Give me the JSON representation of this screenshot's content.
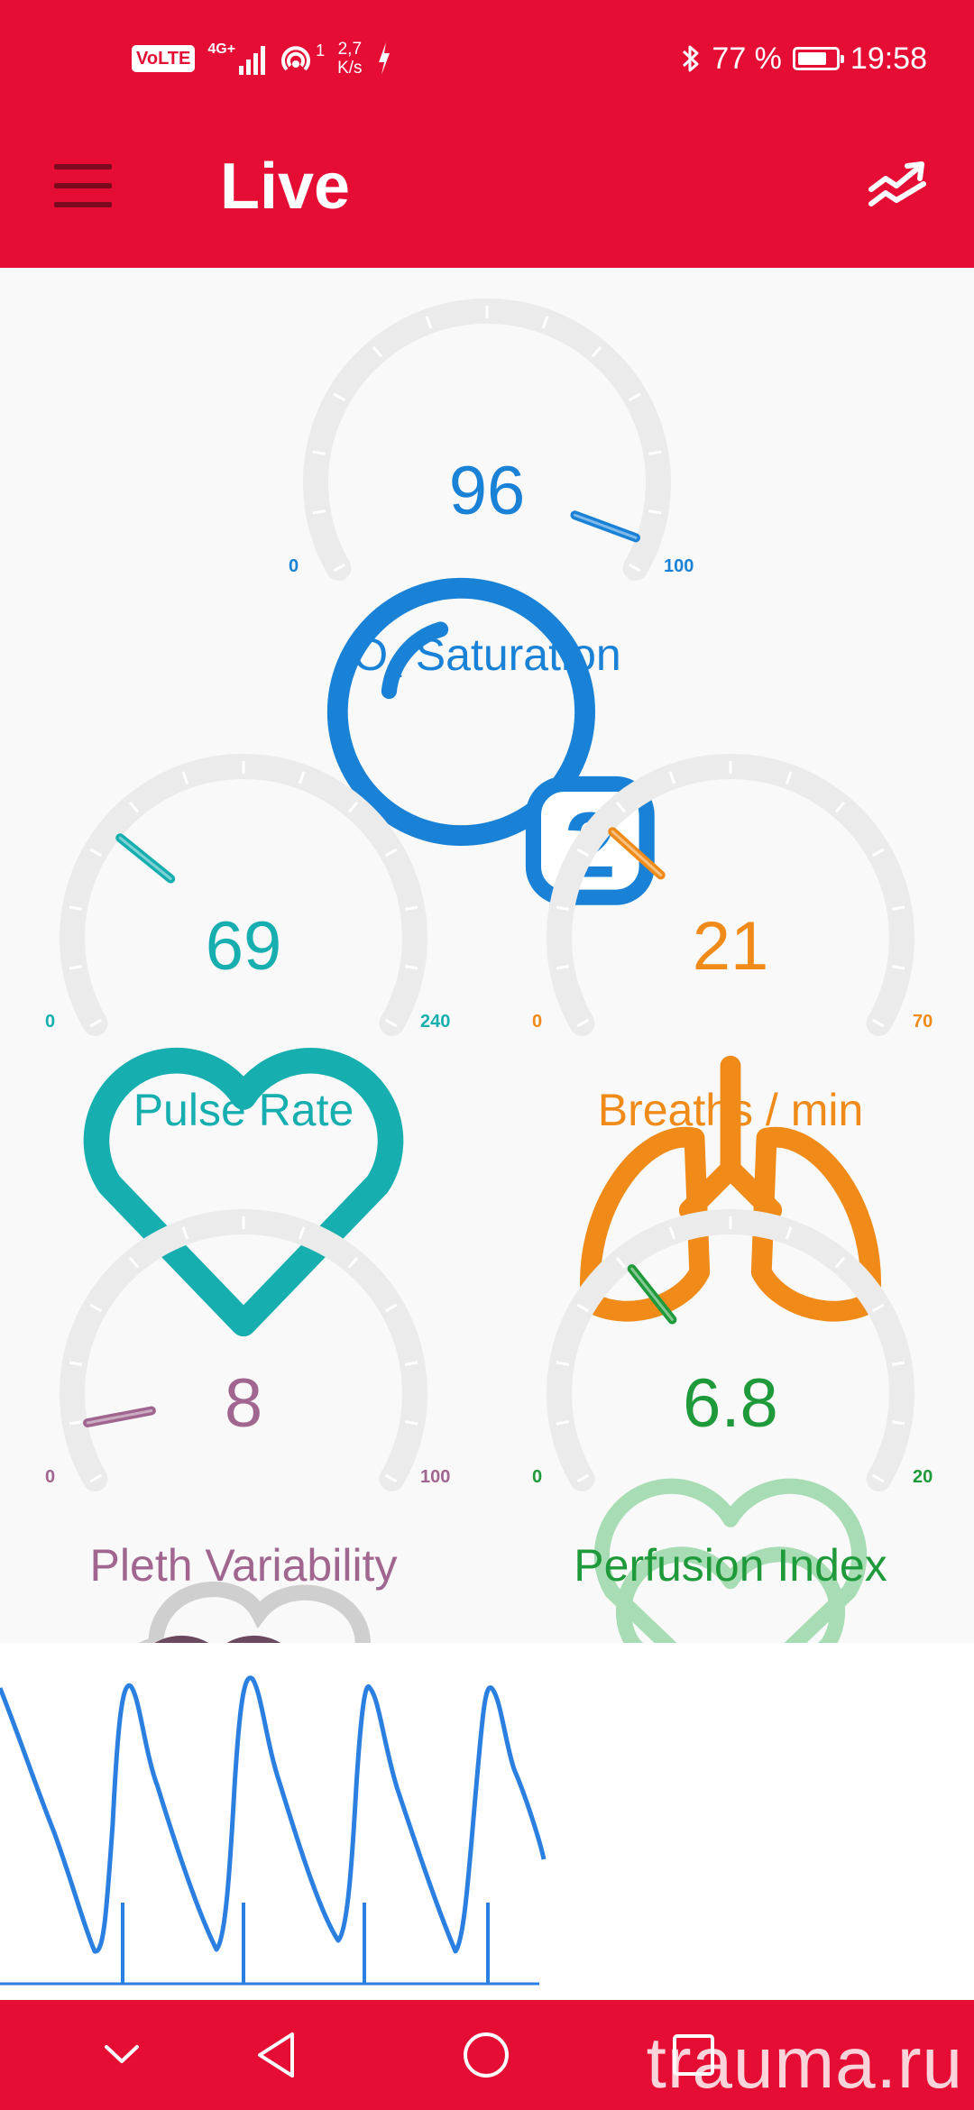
{
  "status_bar": {
    "volte": "VoLTE",
    "network": "4G+",
    "hotspot_count": "1",
    "net_speed_value": "2,7",
    "net_speed_unit": "K/s",
    "bluetooth_icon": "bluetooth-icon",
    "battery_percent": "77 %",
    "battery_level": 0.77,
    "time": "19:58"
  },
  "app_bar": {
    "title": "Live",
    "menu_icon": "hamburger-menu-icon",
    "trends_icon": "trending-chart-icon"
  },
  "gauges": [
    {
      "id": "o2",
      "value": "96",
      "value_num": 96,
      "min": "0",
      "max": "100",
      "min_num": 0,
      "max_num": 100,
      "label_main": "O",
      "label_sub": "2",
      "label_rest": " Saturation",
      "icon": "o2-bubble-icon",
      "color": "#1a82d6"
    },
    {
      "id": "pulse",
      "value": "69",
      "value_num": 69,
      "min": "0",
      "max": "240",
      "min_num": 0,
      "max_num": 240,
      "label": "Pulse Rate",
      "icon": "heart-icon",
      "color": "#17aeb0"
    },
    {
      "id": "breaths",
      "value": "21",
      "value_num": 21,
      "min": "0",
      "max": "70",
      "min_num": 0,
      "max_num": 70,
      "label": "Breaths / min",
      "icon": "lungs-icon",
      "color": "#f08a19"
    },
    {
      "id": "pleth",
      "value": "8",
      "value_num": 8,
      "min": "0",
      "max": "100",
      "min_num": 0,
      "max_num": 100,
      "label": "Pleth Variability",
      "icon": "pleth-heart-cloud-icon",
      "color": "#a06690"
    },
    {
      "id": "perfusion",
      "value": "6.8",
      "value_num": 6.8,
      "min": "0",
      "max": "20",
      "min_num": 0,
      "max_num": 20,
      "label": "Perfusion Index",
      "icon": "perfusion-heart-icon",
      "color": "#1f9a3a"
    }
  ],
  "waveform": {
    "color": "#2a7fe0",
    "beat_marker_color": "#2a7fe0"
  },
  "nav_bar": {
    "down_icon": "chevron-down-icon",
    "back_icon": "back-triangle-icon",
    "home_icon": "home-circle-icon",
    "recents_icon": "recents-square-icon"
  },
  "watermark": "trauma.ru"
}
